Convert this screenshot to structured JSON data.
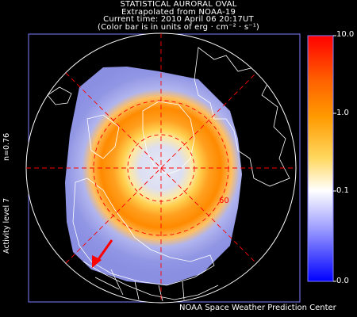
{
  "title": {
    "line1": "STATISTICAL AURORAL OVAL",
    "line2": "Extrapolated from NOAA-19",
    "line3": "Current time: 2010 April 06 20:17UT",
    "line4": "(Color bar is in units of erg · cm⁻² · s⁻¹)"
  },
  "side": {
    "n_value": "n=0.76",
    "activity": "Activity level 7"
  },
  "latitude_label": "60",
  "colorbar": {
    "ticks": [
      "10.0",
      "1.0",
      "0.1",
      "0.0"
    ],
    "colors": [
      "#ff0000",
      "#ff8000",
      "#ffd000",
      "#ffffff",
      "#8080ff",
      "#0000ff"
    ]
  },
  "credit": "NOAA Space Weather Prediction Center",
  "colors": {
    "background": "#000000",
    "grid": "#ff0000",
    "coastline": "#ffffff",
    "oval_peak": "#ffd040",
    "oval_mid": "#ff8c00",
    "low_activity": "#8f94e6",
    "arrow": "#ff0000"
  }
}
